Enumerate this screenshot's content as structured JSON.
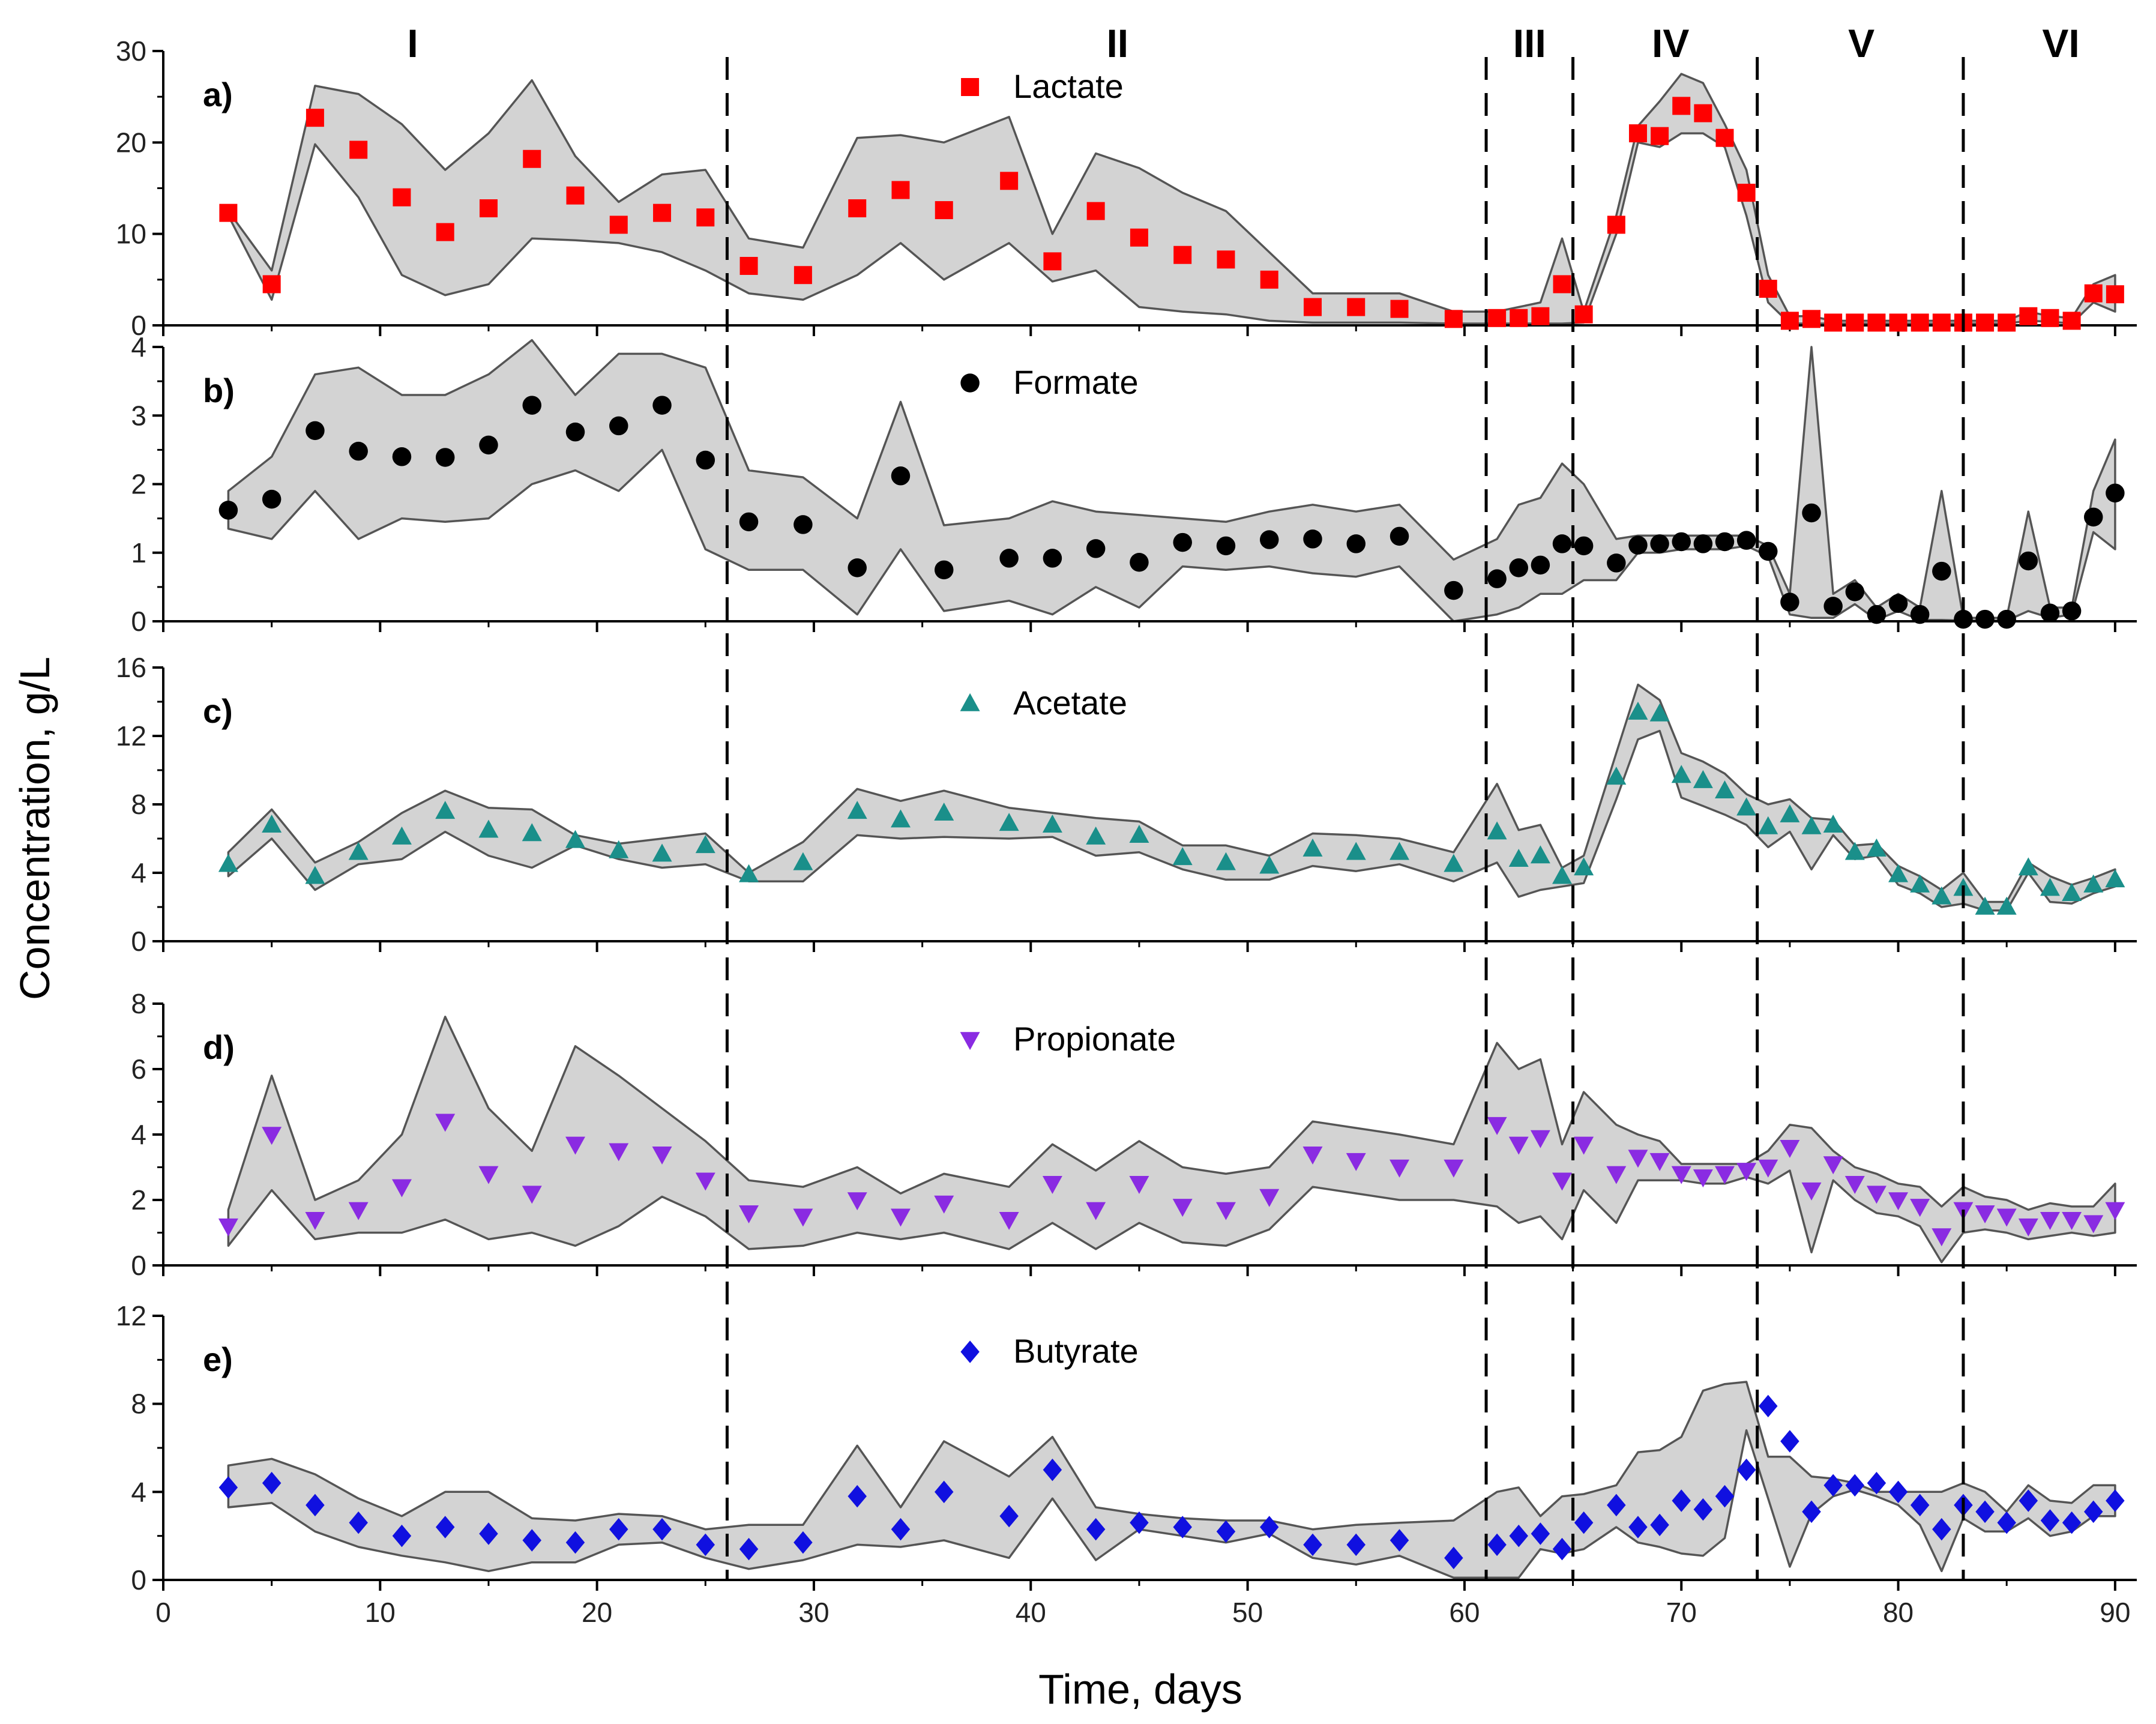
{
  "chart_data": {
    "type": "scatter",
    "xlabel": "Time, days",
    "ylabel": "Concentration, g/L",
    "xlim": [
      0,
      91
    ],
    "xticks": [
      0,
      10,
      20,
      30,
      40,
      50,
      60,
      70,
      80,
      90
    ],
    "phase_boundaries": [
      26,
      61,
      65,
      73.5,
      83
    ],
    "phases": [
      {
        "label": "I",
        "center": 11.5
      },
      {
        "label": "II",
        "center": 44
      },
      {
        "label": "III",
        "center": 63
      },
      {
        "label": "IV",
        "center": 69.5
      },
      {
        "label": "V",
        "center": 78.3
      },
      {
        "label": "VI",
        "center": 87.5
      }
    ],
    "panels": [
      {
        "letter": "a)",
        "series_name": "Lactate",
        "marker": "square",
        "color": "#ff0000",
        "ylim": [
          0,
          30
        ],
        "yticks": [
          0,
          10,
          20,
          30
        ],
        "x": [
          3,
          5,
          7,
          9,
          11,
          13,
          15,
          17,
          19,
          21,
          23,
          25,
          27,
          29.5,
          32,
          34,
          36,
          39,
          41,
          43,
          45,
          47,
          49,
          51,
          53,
          55,
          57,
          59.5,
          61.5,
          62.5,
          63.5,
          64.5,
          65.5,
          67,
          68,
          69,
          70,
          71,
          72,
          73,
          74,
          75,
          76,
          77,
          78,
          79,
          80,
          81,
          82,
          83,
          84,
          85,
          86,
          87,
          88,
          89,
          90
        ],
        "y": [
          12.3,
          4.5,
          22.7,
          19.2,
          14,
          10.2,
          12.8,
          18.2,
          14.2,
          11,
          12.3,
          11.8,
          6.5,
          5.5,
          12.8,
          14.8,
          12.6,
          15.8,
          7,
          12.5,
          9.6,
          7.7,
          7.2,
          5,
          2,
          2,
          1.8,
          0.7,
          0.8,
          0.8,
          1,
          4.5,
          1.2,
          11,
          21,
          20.7,
          24,
          23.2,
          20.5,
          14.5,
          4,
          0.5,
          0.7,
          0.3,
          0.3,
          0.3,
          0.3,
          0.3,
          0.3,
          0.3,
          0.3,
          0.3,
          1,
          0.8,
          0.5,
          3.5,
          3.4
        ],
        "band_upper": [
          12.5,
          6,
          26.2,
          25.3,
          22,
          17,
          21,
          26.8,
          18.5,
          13.5,
          16.5,
          17,
          9.5,
          8.5,
          20.5,
          20.8,
          20,
          22.8,
          10,
          18.8,
          17.2,
          14.5,
          12.5,
          8,
          3.5,
          3.5,
          3.5,
          1.5,
          1.5,
          2,
          2.5,
          9.5,
          1.5,
          12,
          21.8,
          24.5,
          27.5,
          26.5,
          22,
          17,
          5.5,
          1,
          1,
          0.5,
          0.5,
          0.5,
          0.5,
          0.5,
          0.5,
          0.5,
          0.5,
          0.5,
          1.5,
          1,
          0.8,
          4.5,
          5.5
        ],
        "band_lower": [
          12,
          2.8,
          19.8,
          14,
          5.5,
          3.3,
          4.5,
          9.5,
          9.3,
          9,
          8,
          6,
          3.5,
          2.8,
          5.5,
          9,
          5,
          9,
          4.8,
          6,
          2,
          1.5,
          1.2,
          0.5,
          0.3,
          0.3,
          0.3,
          0.2,
          0.2,
          0.2,
          0.2,
          0.2,
          0.3,
          10,
          20,
          19.5,
          21,
          21,
          19.5,
          12,
          2.5,
          0.2,
          0.2,
          0.2,
          0.2,
          0.2,
          0.2,
          0.2,
          0.2,
          0.2,
          0.2,
          0.2,
          0.5,
          0.4,
          0.2,
          2.5,
          1.5
        ]
      },
      {
        "letter": "b)",
        "series_name": "Formate",
        "marker": "circle",
        "color": "#000000",
        "ylim": [
          0,
          4
        ],
        "yticks": [
          0,
          1,
          2,
          3,
          4
        ],
        "x": [
          3,
          5,
          7,
          9,
          11,
          13,
          15,
          17,
          19,
          21,
          23,
          25,
          27,
          29.5,
          32,
          34,
          36,
          39,
          41,
          43,
          45,
          47,
          49,
          51,
          53,
          55,
          57,
          59.5,
          61.5,
          62.5,
          63.5,
          64.5,
          65.5,
          67,
          68,
          69,
          70,
          71,
          72,
          73,
          74,
          75,
          76,
          77,
          78,
          79,
          80,
          81,
          82,
          83,
          84,
          85,
          86,
          87,
          88,
          89,
          90
        ],
        "y": [
          1.62,
          1.78,
          2.78,
          2.48,
          2.4,
          2.39,
          2.57,
          3.15,
          2.76,
          2.85,
          3.15,
          2.35,
          1.45,
          1.41,
          0.78,
          2.12,
          0.75,
          0.92,
          0.92,
          1.06,
          0.86,
          1.15,
          1.1,
          1.19,
          1.2,
          1.13,
          1.24,
          0.45,
          0.62,
          0.78,
          0.82,
          1.13,
          1.1,
          0.85,
          1.11,
          1.13,
          1.16,
          1.13,
          1.16,
          1.18,
          1.02,
          0.28,
          1.58,
          0.22,
          0.43,
          0.1,
          0.26,
          0.1,
          0.73,
          0.03,
          0.03,
          0.03,
          0.88,
          0.12,
          0.15,
          1.52,
          1.87
        ],
        "band_upper": [
          1.9,
          2.4,
          3.6,
          3.7,
          3.3,
          3.3,
          3.6,
          4.1,
          3.3,
          3.9,
          3.9,
          3.7,
          2.2,
          2.1,
          1.5,
          3.2,
          1.4,
          1.5,
          1.75,
          1.6,
          1.55,
          1.5,
          1.45,
          1.6,
          1.7,
          1.6,
          1.7,
          0.9,
          1.2,
          1.7,
          1.8,
          2.3,
          2,
          1.2,
          1.25,
          1.25,
          1.25,
          1.25,
          1.25,
          1.25,
          1.1,
          0.4,
          4,
          0.4,
          0.6,
          0.2,
          0.4,
          0.2,
          1.9,
          0.05,
          0.05,
          0.05,
          1.6,
          0.2,
          0.2,
          1.9,
          2.65
        ],
        "band_lower": [
          1.35,
          1.2,
          1.9,
          1.2,
          1.5,
          1.45,
          1.5,
          2,
          2.2,
          1.9,
          2.5,
          1.05,
          0.75,
          0.75,
          0.1,
          1.05,
          0.15,
          0.3,
          0.1,
          0.5,
          0.2,
          0.8,
          0.75,
          0.8,
          0.7,
          0.65,
          0.8,
          0,
          0.1,
          0.2,
          0.4,
          0.4,
          0.6,
          0.6,
          1,
          1,
          1.05,
          1.05,
          1.05,
          1.1,
          0.95,
          0.1,
          0.05,
          0.05,
          0.25,
          0.02,
          0.15,
          0.02,
          0.02,
          0.01,
          0.01,
          0.01,
          0.15,
          0.05,
          0.1,
          1.3,
          1.05
        ]
      },
      {
        "letter": "c)",
        "series_name": "Acetate",
        "marker": "triangle-up",
        "color": "#1a8f8a",
        "ylim": [
          0,
          16
        ],
        "yticks": [
          0,
          4,
          8,
          12,
          16
        ],
        "x": [
          3,
          5,
          7,
          9,
          11,
          13,
          15,
          17,
          19,
          21,
          23,
          25,
          27,
          29.5,
          32,
          34,
          36,
          39,
          41,
          43,
          45,
          47,
          49,
          51,
          53,
          55,
          57,
          59.5,
          61.5,
          62.5,
          63.5,
          64.5,
          65.5,
          67,
          68,
          69,
          70,
          71,
          72,
          73,
          74,
          75,
          76,
          77,
          78,
          79,
          80,
          81,
          82,
          83,
          84,
          85,
          86,
          87,
          88,
          89,
          90
        ],
        "y": [
          4.5,
          6.8,
          3.8,
          5.2,
          6.1,
          7.6,
          6.5,
          6.3,
          5.9,
          5.3,
          5.1,
          5.6,
          3.9,
          4.6,
          7.6,
          7.1,
          7.5,
          6.9,
          6.8,
          6.1,
          6.2,
          4.9,
          4.6,
          4.4,
          5.4,
          5.2,
          5.2,
          4.5,
          6.4,
          4.8,
          5,
          3.8,
          4.3,
          9.6,
          13.4,
          13.3,
          9.7,
          9.4,
          8.8,
          7.8,
          6.7,
          7.4,
          6.7,
          6.8,
          5.2,
          5.4,
          3.9,
          3.3,
          2.6,
          3.1,
          2,
          2,
          4.3,
          3.1,
          2.8,
          3.3,
          3.6
        ],
        "band_upper": [
          5.2,
          7.7,
          4.6,
          5.8,
          7.5,
          8.8,
          7.8,
          7.7,
          6.2,
          5.7,
          6,
          6.3,
          4,
          5.8,
          8.9,
          8.2,
          8.8,
          7.8,
          7.5,
          7.2,
          7,
          5.6,
          5.6,
          5,
          6.3,
          6.2,
          6,
          5.2,
          9.2,
          6.5,
          6.8,
          4.3,
          5,
          11,
          15,
          14.1,
          11,
          10.5,
          9.8,
          8.6,
          8,
          8.3,
          7.2,
          7.1,
          5.6,
          5.7,
          4.4,
          3.8,
          3,
          4,
          2.3,
          2.3,
          4.6,
          3.8,
          3.3,
          3.7,
          4.2
        ],
        "band_lower": [
          3.8,
          6,
          3,
          4.5,
          4.8,
          6.4,
          5,
          4.3,
          5.6,
          4.8,
          4.3,
          4.5,
          3.5,
          3.5,
          6.2,
          6,
          6.1,
          6,
          6.1,
          5,
          5.2,
          4.2,
          3.6,
          3.6,
          4.4,
          4.1,
          4.5,
          3.5,
          4.6,
          2.6,
          3,
          3.2,
          3.4,
          8.3,
          11.8,
          12.3,
          8.4,
          7.9,
          7.4,
          6.8,
          5.5,
          6.4,
          4.2,
          6.2,
          4.8,
          5,
          3.3,
          2.8,
          2,
          2.2,
          1.8,
          1.8,
          4,
          2.3,
          2.2,
          2.8,
          3.2
        ]
      },
      {
        "letter": "d)",
        "series_name": "Propionate",
        "marker": "triangle-down",
        "color": "#8a2be2",
        "ylim": [
          0,
          8
        ],
        "yticks": [
          0,
          2,
          4,
          6,
          8
        ],
        "x": [
          3,
          5,
          7,
          9,
          11,
          13,
          15,
          17,
          19,
          21,
          23,
          25,
          27,
          29.5,
          32,
          34,
          36,
          39,
          41,
          43,
          45,
          47,
          49,
          51,
          53,
          55,
          57,
          59.5,
          61.5,
          62.5,
          63.5,
          64.5,
          65.5,
          67,
          68,
          69,
          70,
          71,
          72,
          73,
          74,
          75,
          76,
          77,
          78,
          79,
          80,
          81,
          82,
          83,
          84,
          85,
          86,
          87,
          88,
          89,
          90
        ],
        "y": [
          1.2,
          4,
          1.4,
          1.7,
          2.4,
          4.4,
          2.8,
          2.2,
          3.7,
          3.5,
          3.4,
          2.6,
          1.6,
          1.5,
          2,
          1.5,
          1.9,
          1.4,
          2.5,
          1.7,
          2.5,
          1.8,
          1.7,
          2.1,
          3.4,
          3.2,
          3,
          3,
          4.3,
          3.7,
          3.9,
          2.6,
          3.7,
          2.8,
          3.3,
          3.2,
          2.8,
          2.7,
          2.8,
          2.9,
          3,
          3.6,
          2.3,
          3.1,
          2.5,
          2.2,
          2,
          1.8,
          0.9,
          1.7,
          1.6,
          1.5,
          1.2,
          1.4,
          1.4,
          1.3,
          1.7
        ],
        "band_upper": [
          1.7,
          5.8,
          2,
          2.6,
          4,
          7.6,
          4.8,
          3.5,
          6.7,
          5.8,
          4.8,
          3.8,
          2.6,
          2.4,
          3,
          2.2,
          2.8,
          2.4,
          3.7,
          2.9,
          3.8,
          3,
          2.8,
          3,
          4.4,
          4.2,
          4,
          3.7,
          6.8,
          6,
          6.3,
          3.7,
          5.3,
          4.3,
          4,
          3.8,
          3.1,
          3.1,
          3.1,
          3.1,
          3.5,
          4.3,
          4.2,
          3.5,
          3,
          2.8,
          2.5,
          2.4,
          1.8,
          2.4,
          2.1,
          2,
          1.7,
          1.9,
          1.8,
          1.8,
          2.5
        ],
        "band_lower": [
          0.6,
          2.3,
          0.8,
          1,
          1,
          1.4,
          0.8,
          1,
          0.6,
          1.2,
          2.1,
          1.5,
          0.5,
          0.6,
          1,
          0.8,
          1,
          0.5,
          1.3,
          0.5,
          1.3,
          0.7,
          0.6,
          1.1,
          2.4,
          2.2,
          2,
          2,
          1.8,
          1.3,
          1.5,
          0.8,
          2.3,
          1.3,
          2.6,
          2.6,
          2.6,
          2.5,
          2.5,
          2.7,
          2.5,
          2.9,
          0.4,
          2.6,
          2,
          1.6,
          1.5,
          1.2,
          0.1,
          1,
          1.1,
          1,
          0.8,
          0.9,
          1,
          0.9,
          1
        ]
      },
      {
        "letter": "e)",
        "series_name": "Butyrate",
        "marker": "diamond",
        "color": "#1010e0",
        "ylim": [
          0,
          12
        ],
        "yticks": [
          0,
          4,
          8,
          12
        ],
        "x": [
          3,
          5,
          7,
          9,
          11,
          13,
          15,
          17,
          19,
          21,
          23,
          25,
          27,
          29.5,
          32,
          34,
          36,
          39,
          41,
          43,
          45,
          47,
          49,
          51,
          53,
          55,
          57,
          59.5,
          61.5,
          62.5,
          63.5,
          64.5,
          65.5,
          67,
          68,
          69,
          70,
          71,
          72,
          73,
          74,
          75,
          76,
          77,
          78,
          79,
          80,
          81,
          82,
          83,
          84,
          85,
          86,
          87,
          88,
          89,
          90
        ],
        "y": [
          4.2,
          4.4,
          3.4,
          2.6,
          2,
          2.4,
          2.1,
          1.8,
          1.7,
          2.3,
          2.3,
          1.6,
          1.4,
          1.7,
          3.8,
          2.3,
          4,
          2.9,
          5,
          2.3,
          2.6,
          2.4,
          2.2,
          2.4,
          1.6,
          1.6,
          1.8,
          1,
          1.6,
          2,
          2.1,
          1.4,
          2.6,
          3.4,
          2.4,
          2.5,
          3.6,
          3.2,
          3.8,
          5,
          7.9,
          6.3,
          3.1,
          4.3,
          4.3,
          4.4,
          4,
          3.4,
          2.3,
          3.4,
          3.1,
          2.6,
          3.6,
          2.7,
          2.6,
          3.1,
          3.6
        ],
        "band_upper": [
          5.2,
          5.5,
          4.8,
          3.7,
          2.9,
          4,
          4,
          2.8,
          2.7,
          3,
          2.9,
          2.3,
          2.5,
          2.5,
          6.1,
          3.3,
          6.3,
          4.7,
          6.5,
          3.3,
          3,
          2.8,
          2.7,
          2.7,
          2.3,
          2.5,
          2.6,
          2.7,
          4,
          4.2,
          2.9,
          3.8,
          3.9,
          4.3,
          5.8,
          5.9,
          6.5,
          8.6,
          8.9,
          9,
          5.6,
          5.6,
          4.7,
          4.6,
          4.4,
          4,
          4,
          4,
          4,
          4.4,
          4,
          3.1,
          4.3,
          3.6,
          3.5,
          4.3,
          4.3
        ],
        "band_lower": [
          3.3,
          3.5,
          2.2,
          1.5,
          1.1,
          0.8,
          0.4,
          0.8,
          0.8,
          1.6,
          1.7,
          1,
          0.5,
          0.9,
          1.6,
          1.5,
          1.8,
          1,
          3.7,
          0.9,
          2.3,
          2,
          1.7,
          2.1,
          1,
          0.7,
          1.1,
          0.1,
          0.1,
          0.1,
          1.4,
          1.2,
          1.4,
          2.4,
          1.7,
          1.5,
          1.2,
          1.1,
          1.9,
          6.8,
          3.7,
          0.6,
          3,
          3.8,
          4.1,
          3.8,
          3.4,
          2.5,
          0.4,
          2.8,
          2.2,
          2.2,
          2.8,
          2,
          2.2,
          2.9,
          2.9
        ]
      }
    ]
  }
}
